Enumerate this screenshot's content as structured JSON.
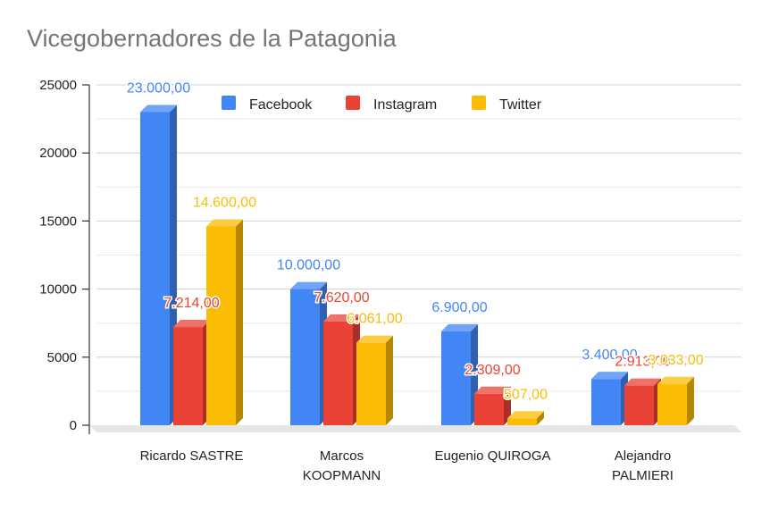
{
  "chart_data": {
    "type": "bar",
    "title": "Vicegobernadores de la Patagonia",
    "xlabel": "",
    "ylabel": "",
    "ylim": [
      0,
      25000
    ],
    "yticks": [
      "0",
      "5000",
      "10000",
      "15000",
      "20000",
      "25000"
    ],
    "grid": true,
    "legend_position": "top-center",
    "categories": [
      [
        "Ricardo SASTRE"
      ],
      [
        "Marcos",
        "KOOPMANN"
      ],
      [
        "Eugenio QUIROGA"
      ],
      [
        "Alejandro",
        "PALMIERI"
      ]
    ],
    "series": [
      {
        "name": "Facebook",
        "color": "#4285f4",
        "values": [
          23000,
          10000,
          6900,
          3400
        ],
        "labels": [
          "23.000,00",
          "10.000,00",
          "6.900,00",
          "3.400,00"
        ]
      },
      {
        "name": "Instagram",
        "color": "#ea4335",
        "values": [
          7214,
          7620,
          2309,
          2913
        ],
        "labels": [
          "7.214,00",
          "7.620,00",
          "2.309,00",
          "2.913,00"
        ]
      },
      {
        "name": "Twitter",
        "color": "#fbbc04",
        "values": [
          14600,
          6061,
          507,
          3033
        ],
        "labels": [
          "14.600,00",
          "6.061,00",
          "507,00",
          "3.033,00"
        ]
      }
    ]
  }
}
